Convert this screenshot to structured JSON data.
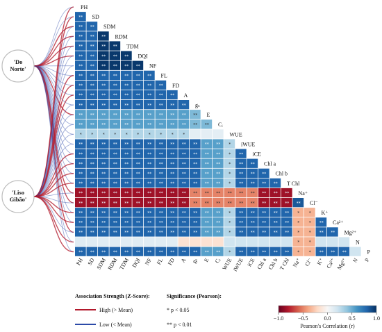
{
  "chart_data": {
    "type": "heatmap",
    "variables": [
      "PH",
      "SD",
      "SDM",
      "RDM",
      "TDM",
      "DQI",
      "NF",
      "FL",
      "FD",
      "A",
      "gₛ",
      "E",
      "Cᵢ",
      "WUE",
      "iWUE",
      "iCE",
      "Chl a",
      "Chl b",
      "T Chl",
      "Na⁺",
      "Cl⁻",
      "K⁺",
      "Ca²⁺",
      "Mg²⁺",
      "N",
      "P"
    ],
    "colorbar": {
      "label": "Pearson's Correlation (r)",
      "range": [
        -1.0,
        1.0
      ],
      "ticks": [
        "−1.0",
        "−0.5",
        "0.0",
        "0.5",
        "1.0"
      ],
      "colors": [
        "#67001f",
        "#b2182b",
        "#d6604d",
        "#f4a582",
        "#fddbc7",
        "#f7f7f7",
        "#d1e5f0",
        "#92c5de",
        "#4393c3",
        "#2166ac",
        "#053061"
      ]
    },
    "groups": [
      "'Do\nNorte'",
      "'Liso\nGibão'"
    ],
    "association_legend": {
      "title": "Association Strength (Z-Score):",
      "items": [
        {
          "label": "High (> Mean)",
          "color": "#b2182b"
        },
        {
          "label": "Low (< Mean)",
          "color": "#2c4aa8"
        }
      ]
    },
    "significance_legend": {
      "title": "Significance (Pearson):",
      "items": [
        "* p < 0.05",
        "** p < 0.01"
      ]
    }
  }
}
